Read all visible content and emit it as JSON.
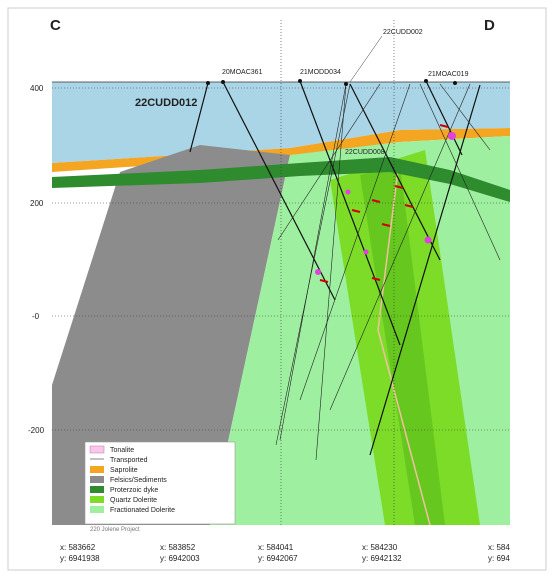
{
  "section": {
    "start": "C",
    "end": "D"
  },
  "y_labels": [
    "400",
    "200",
    "-0",
    "-200"
  ],
  "x_labels": [
    {
      "x": "x: 583662",
      "y": "y: 6941938"
    },
    {
      "x": "x: 583852",
      "y": "y: 6942003"
    },
    {
      "x": "x: 584041",
      "y": "y: 6942067"
    },
    {
      "x": "x: 584230",
      "y": "y: 6942132"
    },
    {
      "x": "x: 584",
      "y": "y: 694"
    }
  ],
  "drillholes": [
    "22CUDD012",
    "20MOAC361",
    "21MODD034",
    "22CUDD002",
    "21MOAC019",
    "22CUDD008"
  ],
  "legend": [
    "Tonalite",
    "Transported",
    "Saprolite",
    "Felsics/Sediments",
    "Proterzoic dyke",
    "Quartz Dolerite",
    "Fractionated Dolerite"
  ],
  "footnote": "220 Jolene Project"
}
